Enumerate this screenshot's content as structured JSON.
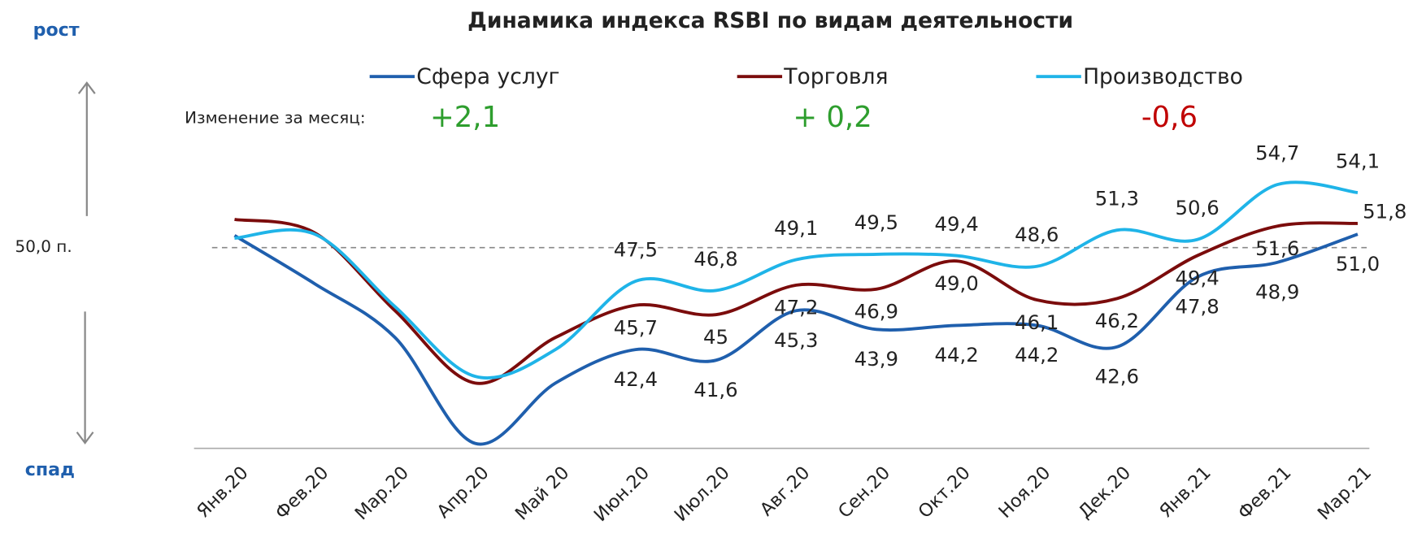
{
  "chart_data": {
    "type": "line",
    "title": "Динамика индекса RSBI по видам деятельности",
    "categories": [
      "Янв.20",
      "Фев.20",
      "Мар.20",
      "Апр.20",
      "Май 20",
      "Июн.20",
      "Июл.20",
      "Авг.20",
      "Сен.20",
      "Окт.20",
      "Ноя.20",
      "Дек.20",
      "Янв.21",
      "Фев.21",
      "Мар.21"
    ],
    "series": [
      {
        "name": "Сфера услуг",
        "color": "#1f5fad",
        "values": [
          50.9,
          47.3,
          43.3,
          35.4,
          39.9,
          42.4,
          41.6,
          45.3,
          43.9,
          44.2,
          44.2,
          42.6,
          47.8,
          48.9,
          51.0
        ],
        "value_labels": [
          null,
          null,
          null,
          null,
          null,
          "42,4",
          "41,6",
          "45,3",
          "43,9",
          "44,2",
          "44,2",
          "42,6",
          "47,8",
          "48,9",
          "51,0"
        ]
      },
      {
        "name": "Торговля",
        "color": "#7b0c0c",
        "values": [
          52.1,
          51.1,
          45.3,
          39.9,
          43.3,
          45.7,
          45,
          47.2,
          46.9,
          49.0,
          46.1,
          46.2,
          49.4,
          51.6,
          51.8
        ],
        "value_labels": [
          null,
          null,
          null,
          null,
          null,
          "45,7",
          "45",
          "47,2",
          "46,9",
          "49,0",
          "46,1",
          "46,2",
          "49,4",
          "51,6",
          "51,8"
        ]
      },
      {
        "name": "Производство",
        "color": "#1fb4e8",
        "values": [
          50.7,
          51.0,
          45.6,
          40.4,
          42.4,
          47.5,
          46.8,
          49.1,
          49.5,
          49.4,
          48.6,
          51.3,
          50.6,
          54.7,
          54.1
        ],
        "value_labels": [
          null,
          null,
          null,
          null,
          null,
          "47,5",
          "46,8",
          "49,1",
          "49,5",
          "49,4",
          "48,6",
          "51,3",
          "50,6",
          "54,7",
          "54,1"
        ]
      }
    ],
    "ylim": [
      35,
      56
    ],
    "reference_line": {
      "value": 50,
      "label": "50,0 п."
    },
    "annotations": {
      "up": "рост",
      "down": "спад",
      "change_label": "Изменение за месяц:",
      "changes": [
        {
          "text": "+2,1",
          "color": "#2e9e2e"
        },
        {
          "text": "+ 0,2",
          "color": "#2e9e2e"
        },
        {
          "text": "-0,6",
          "color": "#c00000"
        }
      ]
    }
  }
}
